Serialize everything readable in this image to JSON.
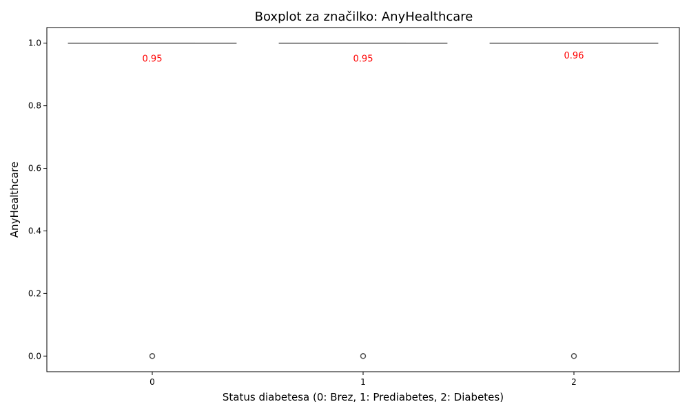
{
  "chart_data": {
    "type": "boxplot",
    "title": "Boxplot za značilko: AnyHealthcare",
    "xlabel": "Status diabetesa (0: Brez, 1: Prediabetes, 2: Diabetes)",
    "ylabel": "AnyHealthcare",
    "categories": [
      "0",
      "1",
      "2"
    ],
    "ylim": [
      -0.05,
      1.05
    ],
    "yticks": [
      0.0,
      0.2,
      0.4,
      0.6,
      0.8,
      1.0
    ],
    "ytick_labels": [
      "0.0",
      "0.2",
      "0.4",
      "0.6",
      "0.8",
      "1.0"
    ],
    "grid": false,
    "boxes": [
      {
        "category": "0",
        "q1": 1.0,
        "median": 1.0,
        "q3": 1.0,
        "whisker_low": 1.0,
        "whisker_high": 1.0,
        "outliers": [
          0.0
        ],
        "mean": 0.95,
        "mean_label": "0.95"
      },
      {
        "category": "1",
        "q1": 1.0,
        "median": 1.0,
        "q3": 1.0,
        "whisker_low": 1.0,
        "whisker_high": 1.0,
        "outliers": [
          0.0
        ],
        "mean": 0.95,
        "mean_label": "0.95"
      },
      {
        "category": "2",
        "q1": 1.0,
        "median": 1.0,
        "q3": 1.0,
        "whisker_low": 1.0,
        "whisker_high": 1.0,
        "outliers": [
          0.0
        ],
        "mean": 0.96,
        "mean_label": "0.96"
      }
    ],
    "colors": {
      "box_line": "#555555",
      "annotation": "#ff0000",
      "axis": "#000000"
    }
  }
}
